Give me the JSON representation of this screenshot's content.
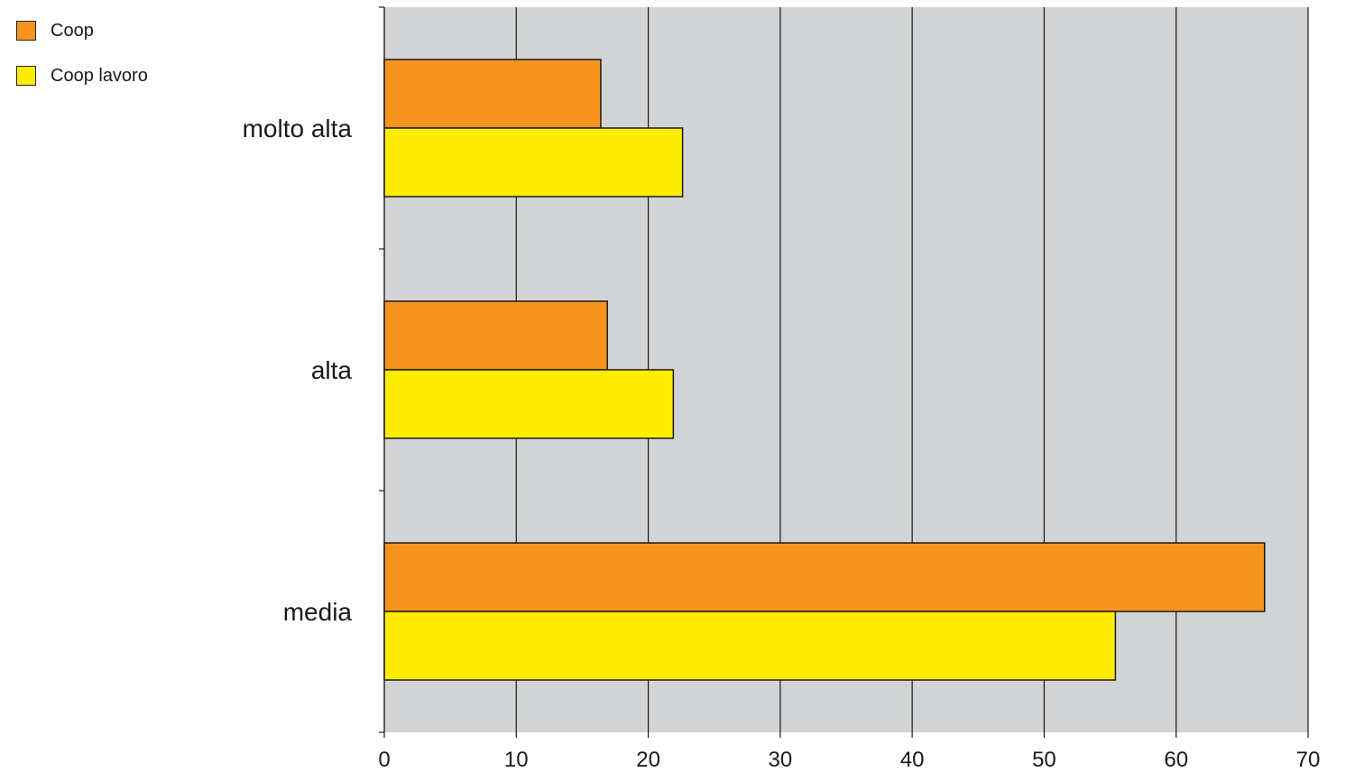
{
  "chart_data": {
    "type": "bar",
    "orientation": "horizontal",
    "categories": [
      "molto alta",
      "alta",
      "media"
    ],
    "series": [
      {
        "name": "Coop",
        "color": "#f7941d",
        "values": [
          16.4,
          16.9,
          66.7
        ]
      },
      {
        "name": "Coop lavoro",
        "color": "#ffed00",
        "values": [
          22.6,
          21.9,
          55.4
        ]
      }
    ],
    "xlim": [
      0,
      70
    ],
    "xticks": [
      0,
      10,
      20,
      30,
      40,
      50,
      60,
      70
    ],
    "grid": "vertical",
    "plot_background": "#d1d3d4",
    "legend": "top-left",
    "title": "",
    "xlabel": "",
    "ylabel": ""
  }
}
